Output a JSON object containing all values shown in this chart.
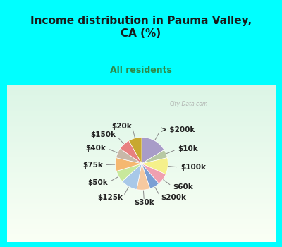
{
  "title": "Income distribution in Pauma Valley,\nCA (%)",
  "subtitle": "All residents",
  "bg_color": "#00FFFF",
  "chart_bg_color_top": "#d8f0e8",
  "chart_bg_color_bottom": "#e8f8f0",
  "watermark": "City-Data.com",
  "labels": [
    "> $200k",
    "$10k",
    "$100k",
    "$60k",
    "$200k",
    "$30k",
    "$125k",
    "$50k",
    "$75k",
    "$40k",
    "$150k",
    "$20k"
  ],
  "values": [
    16,
    5,
    10,
    7,
    6,
    8,
    10,
    7,
    8,
    6,
    7,
    8
  ],
  "colors": [
    "#a89cc8",
    "#b8c9a3",
    "#f5f08a",
    "#f0a0b0",
    "#7b9fd4",
    "#f5c9a0",
    "#a8c8e8",
    "#c8e89c",
    "#f5b870",
    "#c8b8a8",
    "#e88080",
    "#c8a830"
  ],
  "startangle": 90,
  "title_fontsize": 11,
  "subtitle_fontsize": 9,
  "label_fontsize": 7.5
}
